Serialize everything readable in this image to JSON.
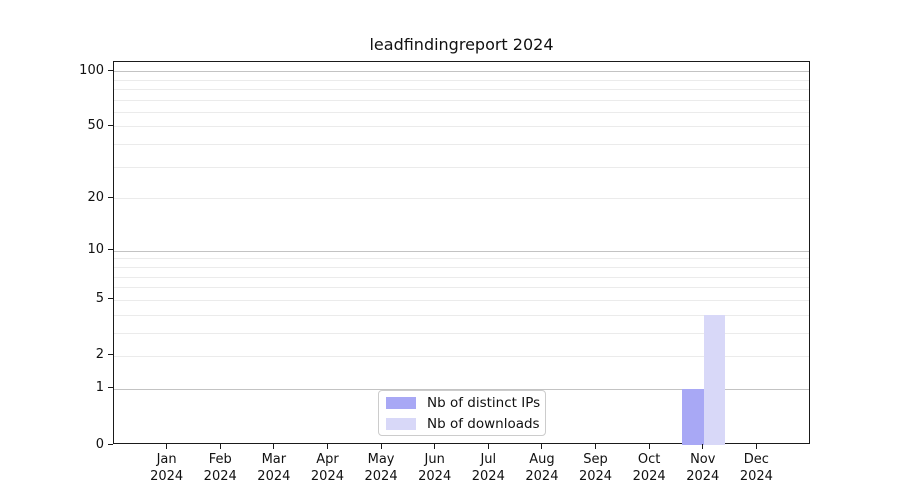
{
  "chart_data": {
    "type": "bar",
    "title": "leadfindingreport 2024",
    "categories": [
      "Jan",
      "Feb",
      "Mar",
      "Apr",
      "May",
      "Jun",
      "Jul",
      "Aug",
      "Sep",
      "Oct",
      "Nov",
      "Dec"
    ],
    "category_year": "2024",
    "series": [
      {
        "name": "Nb of distinct IPs",
        "color": "#a8a8f5",
        "values": [
          0,
          0,
          0,
          0,
          0,
          0,
          0,
          0,
          0,
          0,
          1,
          0
        ]
      },
      {
        "name": "Nb of downloads",
        "color": "#d8d8f8",
        "values": [
          0,
          0,
          0,
          0,
          0,
          0,
          0,
          0,
          0,
          0,
          4,
          0
        ]
      }
    ],
    "xlabel": "",
    "ylabel": "",
    "yscale": "log1p",
    "ylim": [
      0,
      112
    ],
    "yticks": [
      0,
      1,
      2,
      5,
      10,
      20,
      50,
      100
    ],
    "major_gridlines": [
      1,
      10,
      100
    ],
    "minor_gridlines": [
      2,
      3,
      4,
      5,
      6,
      7,
      8,
      9,
      20,
      30,
      40,
      50,
      60,
      70,
      80,
      90
    ],
    "grid": true,
    "legend_position": "lower center",
    "colors": {
      "axis": "#1a1a1a",
      "major_grid": "#c3c3c3",
      "minor_grid": "#ebebeb",
      "text": "#111111",
      "legend_border": "#cccccc",
      "background": "#ffffff"
    }
  }
}
